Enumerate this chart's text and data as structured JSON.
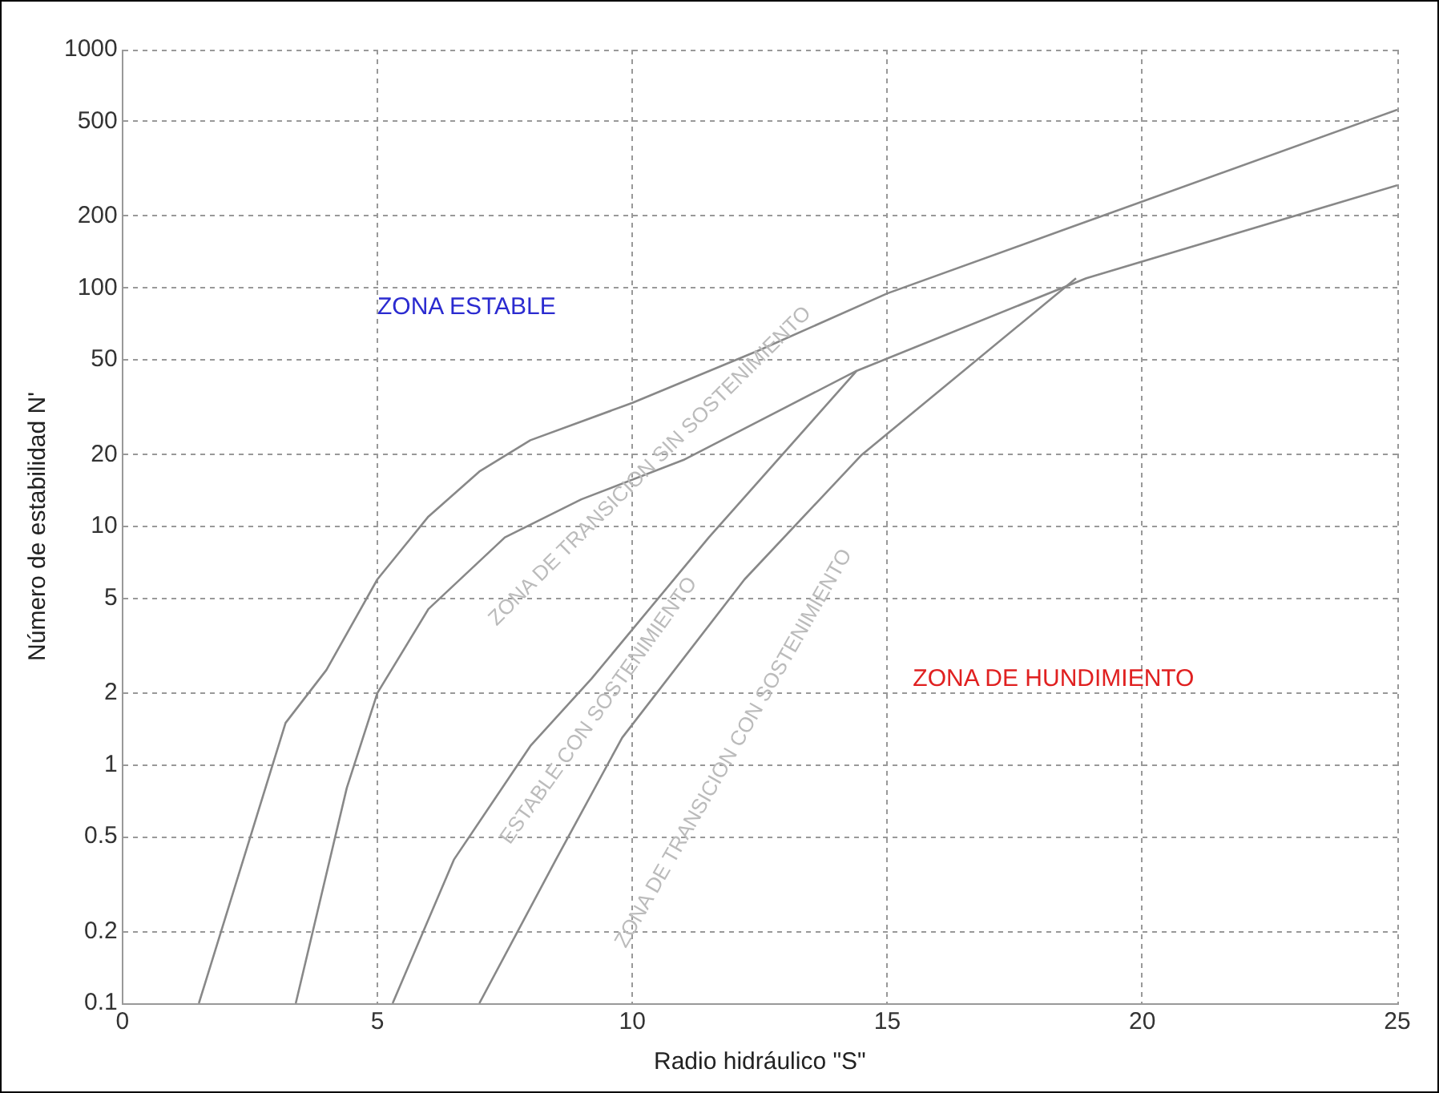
{
  "chart_data": {
    "type": "line",
    "xlabel": "Radio hidráulico \"S\"",
    "ylabel": "Número de estabilidad N'",
    "xlim": [
      0,
      25
    ],
    "xticks": [
      0,
      5,
      10,
      15,
      20,
      25
    ],
    "ylim": [
      0.1,
      1000
    ],
    "yticks": [
      0.1,
      0.2,
      0.5,
      1,
      2,
      5,
      10,
      20,
      50,
      100,
      200,
      500,
      1000
    ],
    "log": "y",
    "grid": true,
    "legend": false,
    "marker": "none",
    "line_style": "solid",
    "series": [
      {
        "color": "#888888",
        "x": [
          1.5,
          3.2,
          4,
          5,
          6,
          7,
          8,
          10,
          12.5,
          15,
          18.6,
          25
        ],
        "values": [
          0.1,
          1.5,
          2.5,
          6,
          11,
          17,
          23,
          33,
          55,
          95,
          180,
          560
        ]
      },
      {
        "color": "#888888",
        "x": [
          3.4,
          4.4,
          5,
          6,
          7.5,
          9,
          11,
          14.4,
          18.9,
          25
        ],
        "values": [
          0.1,
          0.8,
          2,
          4.5,
          9,
          13,
          19,
          45,
          110,
          270
        ]
      },
      {
        "color": "#888888",
        "x": [
          5.3,
          6.5,
          8,
          9.2,
          11.5,
          14.4
        ],
        "values": [
          0.1,
          0.4,
          1.2,
          2.3,
          9,
          45
        ]
      },
      {
        "color": "#888888",
        "x": [
          7,
          8.5,
          9.8,
          12.2,
          14.5,
          18.7
        ],
        "values": [
          0.1,
          0.4,
          1.3,
          6,
          20,
          110
        ]
      }
    ],
    "annotations": [
      "ZONA ESTABLE",
      "ZONA DE HUNDIMIENTO",
      "ZONA DE TRANSICION SIN SOSTENIMIENTO",
      "ESTABLE CON SOSTENIMIENTO",
      "ZONA DE TRANSICION CON SOSTENIMIENTO"
    ]
  }
}
